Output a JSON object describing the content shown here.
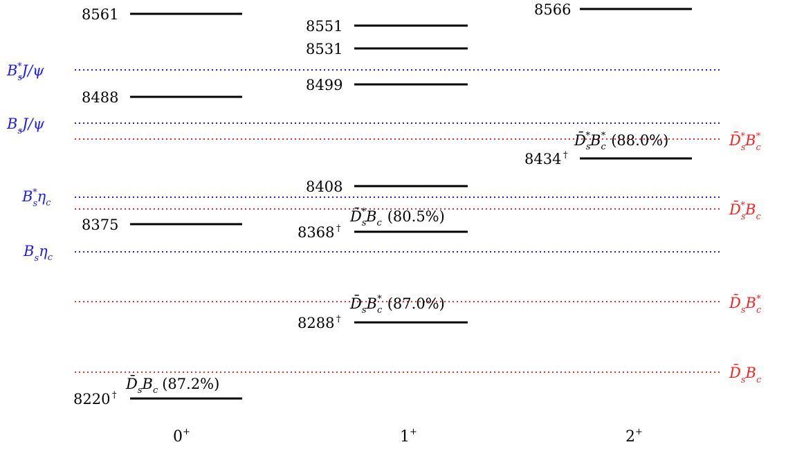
{
  "columns": [
    {
      "id": "c0",
      "label": "0",
      "sup": "+"
    },
    {
      "id": "c1",
      "label": "1",
      "sup": "+"
    },
    {
      "id": "c2",
      "label": "2",
      "sup": "+"
    }
  ],
  "levels": {
    "c0": [
      {
        "mass": "8561",
        "dagger": false
      },
      {
        "mass": "8488",
        "dagger": false
      },
      {
        "mass": "8375",
        "dagger": false
      },
      {
        "mass": "8220",
        "dagger": true,
        "annotation": {
          "channel": "D̄sBc",
          "pct": "(87.2%)"
        }
      }
    ],
    "c1": [
      {
        "mass": "8551",
        "dagger": false
      },
      {
        "mass": "8531",
        "dagger": false
      },
      {
        "mass": "8499",
        "dagger": false
      },
      {
        "mass": "8408",
        "dagger": false
      },
      {
        "mass": "8368",
        "dagger": true,
        "annotation": {
          "channel": "D̄s*Bc",
          "pct": "(80.5%)"
        }
      },
      {
        "mass": "8288",
        "dagger": true,
        "annotation": {
          "channel": "D̄sBc*",
          "pct": "(87.0%)"
        }
      }
    ],
    "c2": [
      {
        "mass": "8566",
        "dagger": false
      },
      {
        "mass": "8434",
        "dagger": true,
        "annotation": {
          "channel": "D̄s*Bc*",
          "pct": "(88.0%)"
        }
      }
    ]
  },
  "dagger_symbol": "†",
  "thresholds_blue": [
    {
      "id": "Bs*Jpsi",
      "label": "Bs*J/ψ"
    },
    {
      "id": "BsJpsi",
      "label": "BsJ/ψ"
    },
    {
      "id": "Bs*etac",
      "label": "Bs*ηc"
    },
    {
      "id": "Bsetac",
      "label": "Bsηc"
    }
  ],
  "thresholds_red": [
    {
      "id": "Ds*Bc*",
      "label": "D̄s*Bc*"
    },
    {
      "id": "Ds*Bc",
      "label": "D̄s*Bc"
    },
    {
      "id": "DsBc*",
      "label": "D̄sBc*"
    },
    {
      "id": "DsBc",
      "label": "D̄sBc"
    }
  ],
  "colors": {
    "blue": "#1a1aff",
    "red": "#ff2020",
    "level": "#000000"
  }
}
